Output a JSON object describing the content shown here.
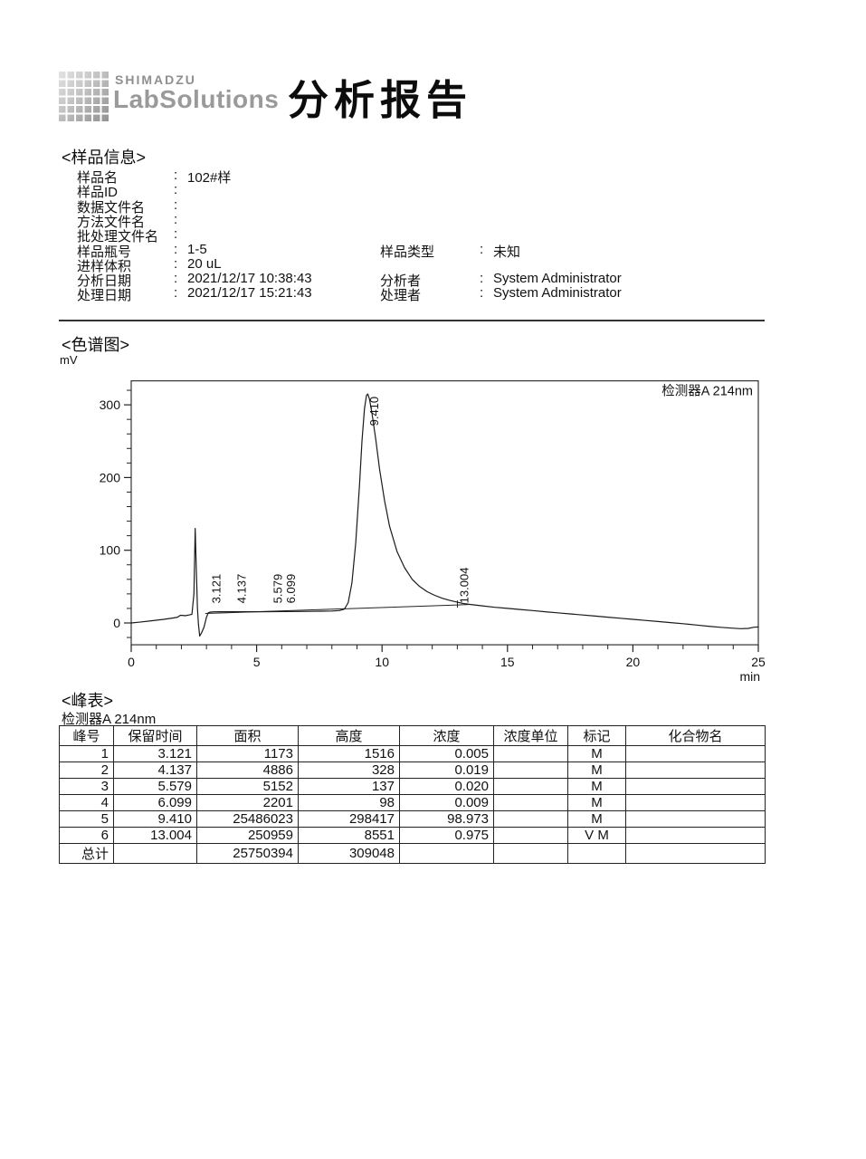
{
  "header": {
    "brand_top": "SHIMADZU",
    "brand_bottom": "LabSolutions",
    "title": "分析报告"
  },
  "sample_info": {
    "section_title": "<样品信息>",
    "rows": [
      {
        "label": "样品名",
        "value": "102#样"
      },
      {
        "label": "样品ID",
        "value": ""
      },
      {
        "label": "数据文件名",
        "value": ""
      },
      {
        "label": "方法文件名",
        "value": ""
      },
      {
        "label": "批处理文件名",
        "value": ""
      },
      {
        "label": "样品瓶号",
        "value": "1-5",
        "label2": "样品类型",
        "value2": "未知"
      },
      {
        "label": "进样体积",
        "value": "20 uL"
      },
      {
        "label": "分析日期",
        "value": "2021/12/17 10:38:43",
        "label2": "分析者",
        "value2": "System Administrator"
      },
      {
        "label": "处理日期",
        "value": "2021/12/17 15:21:43",
        "label2": "处理者",
        "value2": "System Administrator"
      }
    ]
  },
  "chromatogram": {
    "section_title": "<色谱图>",
    "y_unit": "mV",
    "x_unit": "min",
    "detector_label": "检测器A 214nm"
  },
  "chart_data": {
    "type": "line",
    "title": "检测器A 214nm",
    "xlabel": "min",
    "ylabel": "mV",
    "xlim": [
      0,
      25
    ],
    "ylim": [
      -30,
      333
    ],
    "x_ticks": [
      0,
      5,
      10,
      15,
      20,
      25
    ],
    "y_ticks": [
      0,
      100,
      200,
      300
    ],
    "x_minor_step": 1,
    "y_minor_step": 20,
    "grid": false,
    "legend_position": "top-right-inside",
    "peak_labels": [
      {
        "label": "3.121",
        "t": 3.121,
        "label_bottom_mv": 27
      },
      {
        "label": "4.137",
        "t": 4.137,
        "label_bottom_mv": 27
      },
      {
        "label": "5.579",
        "t": 5.579,
        "label_bottom_mv": 27
      },
      {
        "label": "6.099",
        "t": 6.099,
        "label_bottom_mv": 27
      },
      {
        "label": "9.410",
        "t": 9.41,
        "label_bottom_mv": 271
      },
      {
        "label": "13.004",
        "t": 13.004,
        "label_bottom_mv": 27
      }
    ],
    "baseline": {
      "from": [
        2.95,
        13
      ],
      "to": [
        13.45,
        25.3
      ]
    },
    "drop_line_t": 13.004,
    "trace": [
      [
        0,
        0
      ],
      [
        0.3,
        1
      ],
      [
        0.8,
        3
      ],
      [
        1.3,
        5
      ],
      [
        1.7,
        7
      ],
      [
        1.85,
        8
      ],
      [
        1.95,
        10.5
      ],
      [
        2.05,
        10.5
      ],
      [
        2.15,
        10
      ],
      [
        2.3,
        11
      ],
      [
        2.42,
        12
      ],
      [
        2.5,
        40
      ],
      [
        2.55,
        130
      ],
      [
        2.59,
        80
      ],
      [
        2.64,
        20
      ],
      [
        2.68,
        -2
      ],
      [
        2.73,
        -18
      ],
      [
        2.8,
        -14
      ],
      [
        2.9,
        -6
      ],
      [
        3.0,
        8
      ],
      [
        3.07,
        14
      ],
      [
        3.15,
        15
      ],
      [
        3.3,
        15.3
      ],
      [
        3.6,
        15.4
      ],
      [
        4.0,
        15.4
      ],
      [
        4.3,
        15.5
      ],
      [
        4.7,
        15.5
      ],
      [
        5.1,
        15.5
      ],
      [
        5.6,
        15.6
      ],
      [
        6.1,
        15.7
      ],
      [
        6.6,
        15.8
      ],
      [
        7.1,
        16
      ],
      [
        7.6,
        16.2
      ],
      [
        8.0,
        16.5
      ],
      [
        8.3,
        17
      ],
      [
        8.5,
        19
      ],
      [
        8.65,
        28
      ],
      [
        8.8,
        55
      ],
      [
        8.95,
        110
      ],
      [
        9.1,
        190
      ],
      [
        9.2,
        250
      ],
      [
        9.3,
        295
      ],
      [
        9.38,
        313
      ],
      [
        9.43,
        315
      ],
      [
        9.5,
        308
      ],
      [
        9.6,
        288
      ],
      [
        9.75,
        252
      ],
      [
        9.9,
        212
      ],
      [
        10.1,
        168
      ],
      [
        10.3,
        133
      ],
      [
        10.6,
        98
      ],
      [
        10.9,
        76
      ],
      [
        11.2,
        60
      ],
      [
        11.5,
        50
      ],
      [
        11.8,
        43
      ],
      [
        12.1,
        38
      ],
      [
        12.4,
        34
      ],
      [
        12.7,
        31
      ],
      [
        13.0,
        28.5
      ],
      [
        13.2,
        27
      ],
      [
        13.5,
        25.5
      ],
      [
        14,
        23.5
      ],
      [
        14.5,
        21.5
      ],
      [
        15,
        20
      ],
      [
        15.5,
        18.5
      ],
      [
        16,
        17
      ],
      [
        16.5,
        15.5
      ],
      [
        17,
        14
      ],
      [
        17.5,
        12.5
      ],
      [
        18,
        11
      ],
      [
        18.5,
        9.5
      ],
      [
        19,
        8
      ],
      [
        19.5,
        6.5
      ],
      [
        20,
        5
      ],
      [
        20.5,
        3.5
      ],
      [
        21,
        2
      ],
      [
        21.5,
        0.5
      ],
      [
        22,
        -1
      ],
      [
        22.5,
        -2.8
      ],
      [
        23,
        -4.5
      ],
      [
        23.5,
        -6
      ],
      [
        24,
        -7.2
      ],
      [
        24.3,
        -7.8
      ],
      [
        24.6,
        -7.5
      ],
      [
        24.8,
        -6
      ],
      [
        25,
        -5.5
      ]
    ]
  },
  "peak_table": {
    "section_title": "<峰表>",
    "detector": "检测器A 214nm",
    "headers": [
      "峰号",
      "保留时间",
      "面积",
      "高度",
      "浓度",
      "浓度单位",
      "标记",
      "化合物名"
    ],
    "rows": [
      [
        "1",
        "3.121",
        "1173",
        "1516",
        "0.005",
        "",
        "M",
        ""
      ],
      [
        "2",
        "4.137",
        "4886",
        "328",
        "0.019",
        "",
        "M",
        ""
      ],
      [
        "3",
        "5.579",
        "5152",
        "137",
        "0.020",
        "",
        "M",
        ""
      ],
      [
        "4",
        "6.099",
        "2201",
        "98",
        "0.009",
        "",
        "M",
        ""
      ],
      [
        "5",
        "9.410",
        "25486023",
        "298417",
        "98.973",
        "",
        "M",
        ""
      ],
      [
        "6",
        "13.004",
        "250959",
        "8551",
        "0.975",
        "",
        "V M",
        ""
      ]
    ],
    "total_row": [
      "总计",
      "",
      "25750394",
      "309048",
      "",
      "",
      "",
      ""
    ]
  }
}
